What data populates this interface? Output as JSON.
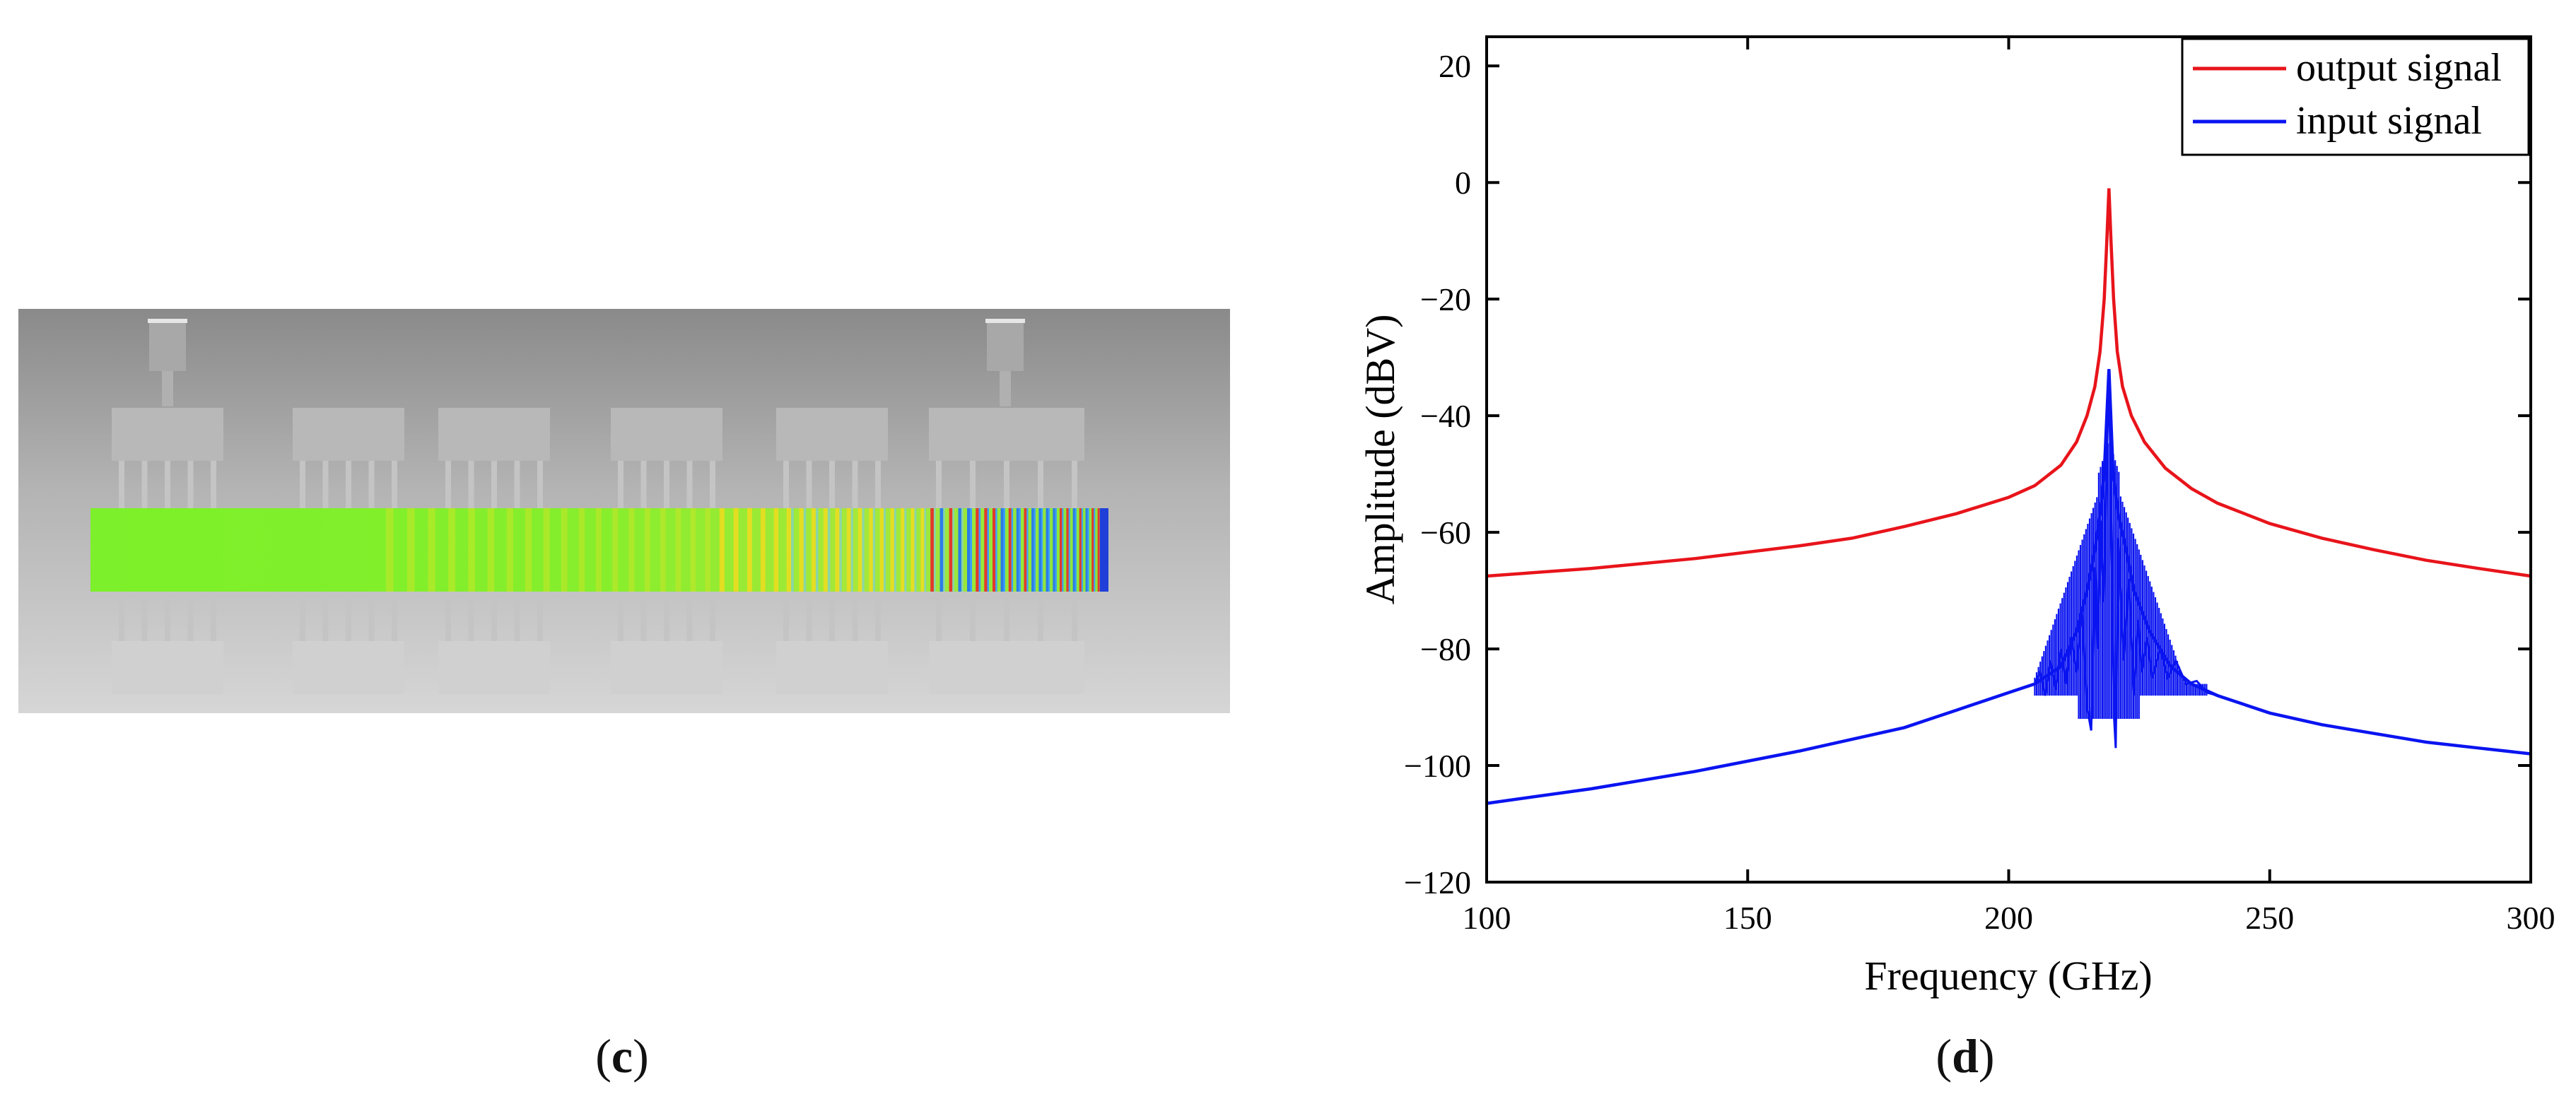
{
  "panels": {
    "c": {
      "label_open": "(",
      "label_letter": "c",
      "label_close": ")"
    },
    "d": {
      "label_open": "(",
      "label_letter": "d",
      "label_close": ")"
    }
  },
  "colors": {
    "output_signal": "#e8141b",
    "input_signal": "#0a14f0",
    "field_green": "#78f028",
    "housing_top": "#8a8a8a",
    "housing_bottom": "#d2d2d2"
  },
  "chart_data": {
    "type": "line",
    "title": "",
    "xlabel": "Frequency (GHz)",
    "ylabel": "Amplitude (dBV)",
    "xlim": [
      100,
      300
    ],
    "ylim": [
      -120,
      25
    ],
    "xticks": [
      100,
      150,
      200,
      250,
      300
    ],
    "yticks": [
      20,
      0,
      -20,
      -40,
      -60,
      -80,
      -100,
      -120
    ],
    "xtick_labels": [
      "100",
      "150",
      "200",
      "250",
      "300"
    ],
    "ytick_labels": [
      "20",
      "0",
      "−20",
      "−40",
      "−60",
      "−80",
      "−100",
      "−120"
    ],
    "grid": false,
    "legend_position": "top-right",
    "series": [
      {
        "name": "output signal",
        "color": "#e8141b",
        "points": [
          [
            100,
            -67.5
          ],
          [
            120,
            -66.2
          ],
          [
            140,
            -64.5
          ],
          [
            160,
            -62.3
          ],
          [
            170,
            -61
          ],
          [
            180,
            -59
          ],
          [
            190,
            -56.8
          ],
          [
            200,
            -54
          ],
          [
            205,
            -52
          ],
          [
            210,
            -48.5
          ],
          [
            213,
            -44.5
          ],
          [
            215,
            -40
          ],
          [
            216.5,
            -35
          ],
          [
            217.5,
            -29
          ],
          [
            218.3,
            -20
          ],
          [
            218.8,
            -10
          ],
          [
            219.2,
            -1
          ],
          [
            219.6,
            -10
          ],
          [
            220.1,
            -20
          ],
          [
            220.8,
            -29
          ],
          [
            221.8,
            -35
          ],
          [
            223.5,
            -40
          ],
          [
            226,
            -44.5
          ],
          [
            230,
            -49
          ],
          [
            235,
            -52.5
          ],
          [
            240,
            -55
          ],
          [
            250,
            -58.5
          ],
          [
            260,
            -61
          ],
          [
            270,
            -63
          ],
          [
            280,
            -64.8
          ],
          [
            290,
            -66.2
          ],
          [
            300,
            -67.5
          ]
        ]
      },
      {
        "name": "input signal",
        "color": "#0a14f0",
        "points": [
          [
            100,
            -106.5
          ],
          [
            120,
            -104
          ],
          [
            140,
            -101
          ],
          [
            160,
            -97.5
          ],
          [
            180,
            -93.5
          ],
          [
            190,
            -90.5
          ],
          [
            200,
            -87.5
          ],
          [
            205,
            -86
          ],
          [
            210,
            -83
          ],
          [
            213,
            -77
          ],
          [
            215,
            -70
          ],
          [
            216.5,
            -63
          ],
          [
            217.5,
            -57
          ],
          [
            218.3,
            -50
          ],
          [
            219.2,
            -32
          ],
          [
            220,
            -50
          ],
          [
            221,
            -57
          ],
          [
            222.5,
            -63
          ],
          [
            224,
            -70
          ],
          [
            227,
            -77
          ],
          [
            231,
            -83
          ],
          [
            235,
            -86
          ],
          [
            240,
            -88
          ],
          [
            250,
            -91
          ],
          [
            260,
            -93
          ],
          [
            270,
            -94.5
          ],
          [
            280,
            -96
          ],
          [
            290,
            -97
          ],
          [
            300,
            -98
          ]
        ],
        "dip_points": [
          [
            205,
            -86
          ],
          [
            206,
            -84
          ],
          [
            207,
            -88
          ],
          [
            208,
            -82
          ],
          [
            209,
            -87
          ],
          [
            210,
            -80
          ],
          [
            211,
            -86
          ],
          [
            212,
            -78
          ],
          [
            213,
            -84
          ],
          [
            214,
            -73
          ],
          [
            215,
            -90
          ],
          [
            215.8,
            -94
          ],
          [
            216.5,
            -66
          ],
          [
            217,
            -80
          ],
          [
            217.6,
            -58
          ],
          [
            218.2,
            -72
          ],
          [
            219.2,
            -32
          ],
          [
            220.2,
            -92
          ],
          [
            220.5,
            -97
          ],
          [
            221,
            -61
          ],
          [
            222,
            -82
          ],
          [
            223,
            -68
          ],
          [
            224,
            -88
          ],
          [
            224.8,
            -75
          ],
          [
            225.5,
            -84
          ],
          [
            226.5,
            -78
          ],
          [
            227.5,
            -85
          ],
          [
            229,
            -80
          ],
          [
            230.5,
            -85
          ],
          [
            232,
            -82
          ],
          [
            234,
            -86
          ],
          [
            236,
            -85.5
          ],
          [
            238,
            -87.5
          ],
          [
            240,
            -88
          ]
        ]
      }
    ]
  }
}
